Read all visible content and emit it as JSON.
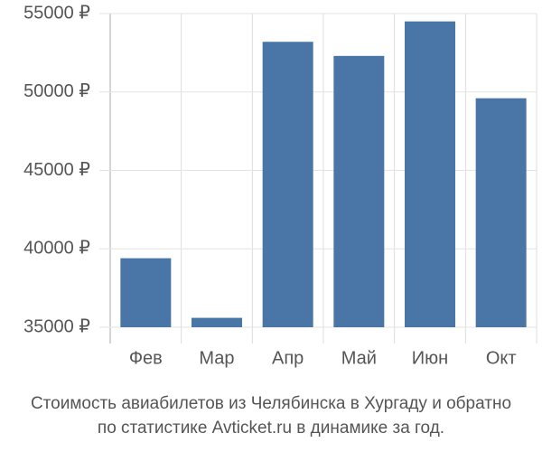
{
  "chart_data": {
    "type": "bar",
    "caption": [
      "Стоимость авиабилетов из Челябинска в Хургаду и обратно",
      "по статистике Avticket.ru в динамике за год."
    ],
    "categories": [
      "Фев",
      "Мар",
      "Апр",
      "Май",
      "Июн",
      "Окт"
    ],
    "values": [
      39400,
      35600,
      53200,
      52300,
      54500,
      49600
    ],
    "color": "#4a76a7",
    "ylim": [
      35000,
      55000
    ],
    "yticks": [
      {
        "value": 35000,
        "label": "35000 ₽"
      },
      {
        "value": 40000,
        "label": "40000 ₽"
      },
      {
        "value": 45000,
        "label": "45000 ₽"
      },
      {
        "value": 50000,
        "label": "50000 ₽"
      },
      {
        "value": 55000,
        "label": "55000 ₽"
      }
    ],
    "grid": true
  }
}
